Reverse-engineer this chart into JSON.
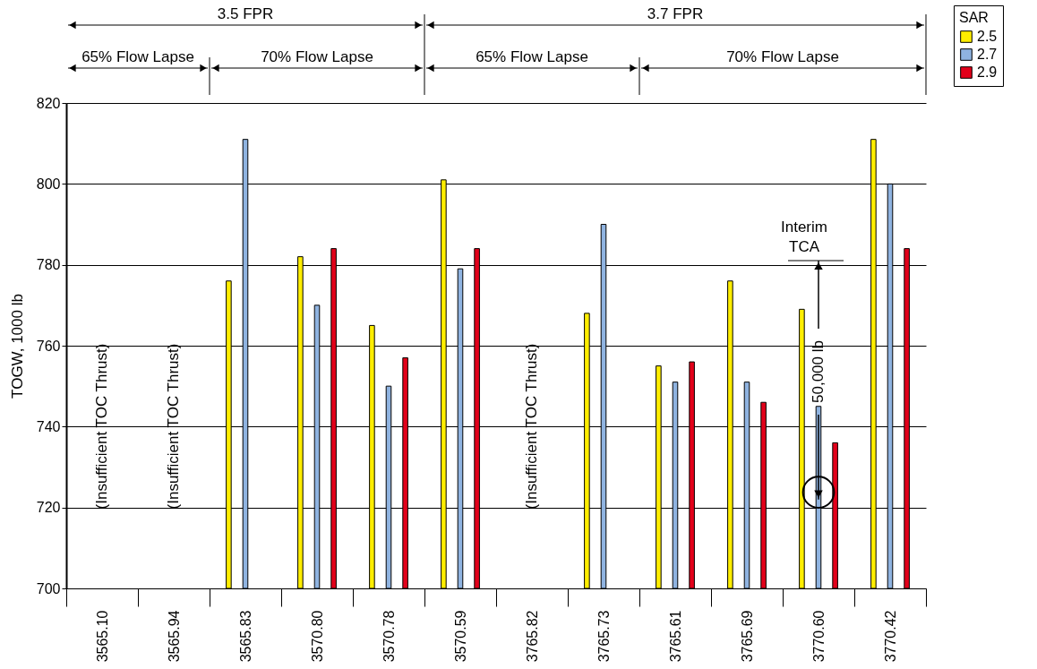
{
  "chart_data": {
    "type": "bar",
    "categories": [
      "3565.10",
      "3565.94",
      "3565.83",
      "3570.80",
      "3570.78",
      "3570.59",
      "3765.82",
      "3765.73",
      "3765.61",
      "3765.69",
      "3770.60",
      "3770.42"
    ],
    "series": [
      {
        "name": "2.5",
        "color": "#ffee00",
        "values": [
          null,
          null,
          776,
          782,
          765,
          801,
          null,
          768,
          755,
          776,
          769,
          811
        ]
      },
      {
        "name": "2.7",
        "color": "#8fb3e0",
        "values": [
          null,
          null,
          811,
          770,
          750,
          779,
          null,
          790,
          751,
          751,
          745,
          800
        ]
      },
      {
        "name": "2.9",
        "color": "#e2001a",
        "values": [
          null,
          null,
          null,
          784,
          757,
          784,
          null,
          null,
          756,
          746,
          736,
          784
        ]
      }
    ],
    "ylabel": "TOGW, 1000 lb",
    "ylim": [
      700,
      820
    ],
    "yticks": [
      700,
      720,
      740,
      760,
      780,
      800,
      820
    ],
    "grid": "y",
    "legend": "right",
    "legend_title": "SAR",
    "annotations": [
      "3.5 FPR",
      "3.7 FPR",
      "65% Flow Lapse",
      "70% Flow Lapse",
      "65% Flow Lapse",
      "70% Flow Lapse",
      "(Insufficient TOC Thrust)",
      "(Insufficient TOC Thrust)",
      "(Insufficient TOC Thrust)",
      {
        "text": "50,000 lb",
        "x": "3770.60",
        "y": 722
      },
      "Interim TCA"
    ]
  }
}
